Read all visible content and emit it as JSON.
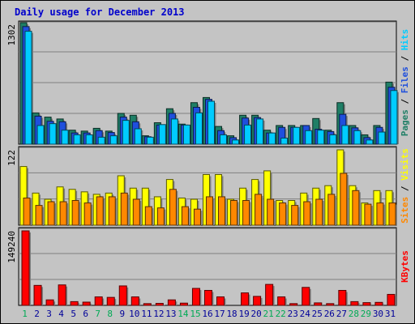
{
  "title": "Daily usage for December 2013",
  "colors": {
    "pages": "#1f7f66",
    "files": "#1f4fdd",
    "hits": "#00ccff",
    "visits": "#ffff00",
    "sites": "#ff8800",
    "kbytes": "#ff0000",
    "weekend": "#00aa55",
    "weekday": "#000099",
    "background": "#c4c4c4"
  },
  "legend_separator": "/",
  "chart_data": [
    {
      "type": "bar",
      "panel": "hits",
      "axis_max_label": "1302",
      "ylim": [
        0,
        1302
      ],
      "grid": true,
      "categories": [
        "1",
        "2",
        "3",
        "4",
        "5",
        "6",
        "7",
        "8",
        "9",
        "10",
        "11",
        "12",
        "13",
        "14",
        "15",
        "16",
        "17",
        "18",
        "19",
        "20",
        "21",
        "22",
        "23",
        "24",
        "25",
        "26",
        "27",
        "28",
        "29",
        "30",
        "31"
      ],
      "weekend_days": [
        "1",
        "7",
        "8",
        "14",
        "15",
        "21",
        "22",
        "28",
        "29"
      ],
      "legend": [
        "Pages",
        "Files",
        "Hits"
      ],
      "series": [
        {
          "name": "Pages",
          "values": [
            1302,
            335,
            290,
            270,
            150,
            140,
            170,
            140,
            330,
            310,
            90,
            230,
            380,
            215,
            445,
            500,
            190,
            90,
            310,
            310,
            150,
            200,
            200,
            200,
            275,
            150,
            445,
            200,
            100,
            200,
            665
          ]
        },
        {
          "name": "Files",
          "values": [
            1260,
            300,
            245,
            240,
            120,
            120,
            145,
            125,
            290,
            240,
            80,
            205,
            330,
            205,
            395,
            480,
            145,
            70,
            280,
            285,
            120,
            180,
            180,
            200,
            160,
            135,
            320,
            175,
            70,
            180,
            610
          ]
        },
        {
          "name": "Hits",
          "values": [
            1210,
            200,
            220,
            150,
            100,
            100,
            75,
            90,
            255,
            165,
            75,
            210,
            270,
            205,
            335,
            460,
            100,
            45,
            205,
            270,
            120,
            65,
            180,
            145,
            150,
            100,
            200,
            145,
            45,
            130,
            575
          ]
        }
      ]
    },
    {
      "type": "bar",
      "panel": "visits",
      "axis_max_label": "122",
      "ylim": [
        0,
        122
      ],
      "grid": true,
      "categories": [
        "1",
        "2",
        "3",
        "4",
        "5",
        "6",
        "7",
        "8",
        "9",
        "10",
        "11",
        "12",
        "13",
        "14",
        "15",
        "16",
        "17",
        "18",
        "19",
        "20",
        "21",
        "22",
        "23",
        "24",
        "25",
        "26",
        "27",
        "28",
        "29",
        "30",
        "31"
      ],
      "legend": [
        "Sites",
        "Visits"
      ],
      "series": [
        {
          "name": "Visits",
          "values": [
            95,
            52,
            42,
            62,
            58,
            54,
            50,
            52,
            80,
            60,
            60,
            46,
            74,
            44,
            42,
            82,
            82,
            42,
            60,
            74,
            88,
            40,
            40,
            52,
            60,
            64,
            122,
            64,
            36,
            56,
            56
          ]
        },
        {
          "name": "Sites",
          "values": [
            44,
            32,
            38,
            38,
            40,
            36,
            46,
            46,
            52,
            42,
            30,
            28,
            58,
            30,
            26,
            46,
            46,
            40,
            40,
            50,
            42,
            36,
            32,
            38,
            42,
            50,
            84,
            56,
            34,
            36,
            36
          ]
        }
      ]
    },
    {
      "type": "bar",
      "panel": "kbytes",
      "axis_max_label": "149240",
      "ylim": [
        0,
        149240
      ],
      "grid": true,
      "categories": [
        "1",
        "2",
        "3",
        "4",
        "5",
        "6",
        "7",
        "8",
        "9",
        "10",
        "11",
        "12",
        "13",
        "14",
        "15",
        "16",
        "17",
        "18",
        "19",
        "20",
        "21",
        "22",
        "23",
        "24",
        "25",
        "26",
        "27",
        "28",
        "29",
        "30",
        "31"
      ],
      "legend": [
        "KBytes"
      ],
      "series": [
        {
          "name": "KBytes",
          "values": [
            149240,
            40000,
            11000,
            41000,
            7500,
            6500,
            17000,
            16000,
            39000,
            17000,
            3500,
            4000,
            11000,
            4500,
            34000,
            30000,
            17000,
            500,
            25000,
            18000,
            42000,
            17000,
            3500,
            36000,
            5000,
            3500,
            30000,
            7500,
            5500,
            6000,
            22000
          ]
        }
      ]
    }
  ]
}
